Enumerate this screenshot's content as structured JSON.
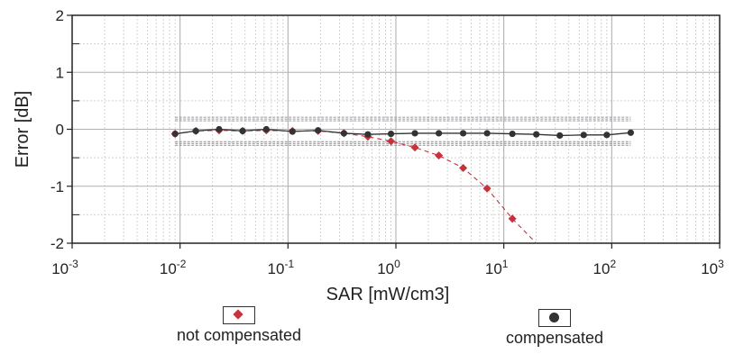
{
  "chart_data": {
    "type": "line",
    "xlabel": "SAR [mW/cm3]",
    "ylabel": "Error [dB]",
    "x_scale": "log",
    "xlim": [
      0.001,
      1000
    ],
    "ylim": [
      -2,
      2
    ],
    "x_ticks": [
      {
        "base": "10",
        "exp": "-3"
      },
      {
        "base": "10",
        "exp": "-2"
      },
      {
        "base": "10",
        "exp": "-1"
      },
      {
        "base": "10",
        "exp": "0"
      },
      {
        "base": "10",
        "exp": "1"
      },
      {
        "base": "10",
        "exp": "2"
      },
      {
        "base": "10",
        "exp": "3"
      }
    ],
    "y_ticks": [
      "2",
      "1",
      "0",
      "-1",
      "-2"
    ],
    "grid": true,
    "legend_position": "bottom",
    "series": [
      {
        "name": "not compensated",
        "color": "#c8323c",
        "marker": "diamond",
        "x": [
          0.009,
          0.014,
          0.023,
          0.038,
          0.063,
          0.11,
          0.19,
          0.33,
          0.55,
          0.9,
          1.5,
          2.5,
          4.2,
          7.0,
          12,
          20
        ],
        "y": [
          -0.08,
          -0.03,
          -0.02,
          -0.03,
          -0.02,
          -0.03,
          -0.03,
          -0.07,
          -0.13,
          -0.21,
          -0.32,
          -0.46,
          -0.68,
          -1.04,
          -1.57,
          -2.0
        ]
      },
      {
        "name": "compensated",
        "color": "#333333",
        "marker": "circle",
        "x": [
          0.009,
          0.014,
          0.023,
          0.038,
          0.063,
          0.11,
          0.19,
          0.33,
          0.55,
          0.9,
          1.5,
          2.5,
          4.2,
          7.0,
          12,
          20,
          33,
          55,
          90,
          150
        ],
        "y": [
          -0.08,
          -0.03,
          0.0,
          -0.03,
          0.0,
          -0.04,
          -0.02,
          -0.07,
          -0.09,
          -0.08,
          -0.07,
          -0.07,
          -0.07,
          -0.07,
          -0.08,
          -0.09,
          -0.11,
          -0.1,
          -0.1,
          -0.06
        ]
      }
    ],
    "uncertainty_band": {
      "upper": 0.18,
      "lower": -0.25,
      "x_start": 0.009,
      "x_end": 150,
      "color": "#9a9aa2"
    }
  }
}
